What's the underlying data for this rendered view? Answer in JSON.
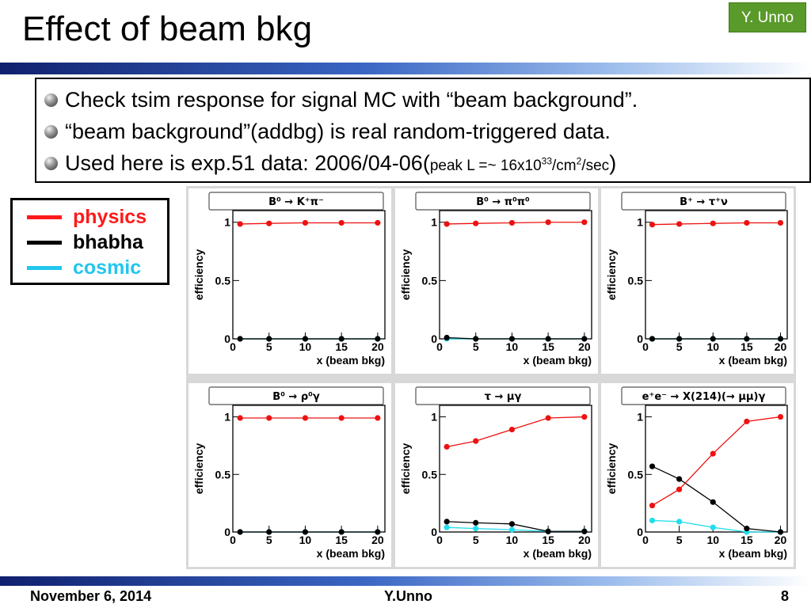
{
  "slide": {
    "title": "Effect of beam bkg",
    "author_badge": "Y. Unno",
    "bullets": [
      "Check tsim response for signal MC with “beam background”.",
      "“beam background”(addbg) is real random-triggered data."
    ],
    "bullet3": {
      "text": "Used here is exp.51 data: 2006/04-06(",
      "small_a": "peak L =~ 16x10",
      "sup_a": "33",
      "small_b": "/cm",
      "sup_b": "2",
      "small_c": "/sec",
      "close": ")"
    },
    "footer": {
      "date": "November 6, 2014",
      "author": "Y.Unno",
      "page": "8"
    }
  },
  "legend": {
    "items": [
      {
        "label": "physics",
        "color": "#ff1a1a"
      },
      {
        "label": "bhabha",
        "color": "#000000"
      },
      {
        "label": "cosmic",
        "color": "#22c6ee"
      }
    ]
  },
  "colors": {
    "physics": "#ee1111",
    "bhabha": "#000000",
    "cosmic": "#22ddee"
  },
  "chart_data": [
    {
      "type": "line",
      "title": "B⁰ → K⁺π⁻",
      "xlabel": "x (beam bkg)",
      "ylabel": "efficiency",
      "xlim": [
        0,
        21
      ],
      "ylim": [
        0,
        1.1
      ],
      "xticks": [
        "0",
        "5",
        "10",
        "15",
        "20"
      ],
      "yticks": [
        "0",
        "0.5",
        "1"
      ],
      "x": [
        1,
        5,
        10,
        15,
        20
      ],
      "series": [
        {
          "name": "physics",
          "values": [
            0.985,
            0.99,
            0.995,
            0.995,
            0.995
          ]
        },
        {
          "name": "bhabha",
          "values": [
            0.0,
            0.0,
            0.0,
            0.0,
            0.0
          ]
        },
        {
          "name": "cosmic",
          "values": [
            0.0,
            0.0,
            0.0,
            0.0,
            0.0
          ]
        }
      ]
    },
    {
      "type": "line",
      "title": "B⁰ → π⁰π⁰",
      "xlabel": "x (beam bkg)",
      "ylabel": "efficiency",
      "xlim": [
        0,
        21
      ],
      "ylim": [
        0,
        1.1
      ],
      "xticks": [
        "0",
        "5",
        "10",
        "15",
        "20"
      ],
      "yticks": [
        "0",
        "0.5",
        "1"
      ],
      "x": [
        1,
        5,
        10,
        15,
        20
      ],
      "series": [
        {
          "name": "physics",
          "values": [
            0.985,
            0.99,
            0.995,
            1.0,
            1.0
          ]
        },
        {
          "name": "bhabha",
          "values": [
            0.01,
            0.0,
            0.0,
            0.0,
            0.0
          ]
        },
        {
          "name": "cosmic",
          "values": [
            0.0,
            0.0,
            0.0,
            0.0,
            0.0
          ]
        }
      ]
    },
    {
      "type": "line",
      "title": "B⁺ → τ⁺ν",
      "xlabel": "x (beam bkg)",
      "ylabel": "efficiency",
      "xlim": [
        0,
        21
      ],
      "ylim": [
        0,
        1.1
      ],
      "xticks": [
        "0",
        "5",
        "10",
        "15",
        "20"
      ],
      "yticks": [
        "0",
        "0.5",
        "1"
      ],
      "x": [
        1,
        5,
        10,
        15,
        20
      ],
      "series": [
        {
          "name": "physics",
          "values": [
            0.98,
            0.985,
            0.99,
            0.995,
            0.995
          ]
        },
        {
          "name": "bhabha",
          "values": [
            0.0,
            0.0,
            0.0,
            0.0,
            0.0
          ]
        },
        {
          "name": "cosmic",
          "values": [
            0.0,
            0.0,
            0.0,
            0.0,
            0.0
          ]
        }
      ]
    },
    {
      "type": "line",
      "title": "B⁰ → ρ⁰γ",
      "xlabel": "x (beam bkg)",
      "ylabel": "efficiency",
      "xlim": [
        0,
        21
      ],
      "ylim": [
        0,
        1.1
      ],
      "xticks": [
        "0",
        "5",
        "10",
        "15",
        "20"
      ],
      "yticks": [
        "0",
        "0.5",
        "1"
      ],
      "x": [
        1,
        5,
        10,
        15,
        20
      ],
      "series": [
        {
          "name": "physics",
          "values": [
            0.99,
            0.99,
            0.99,
            0.99,
            0.99
          ]
        },
        {
          "name": "bhabha",
          "values": [
            0.0,
            0.0,
            0.0,
            0.0,
            0.0
          ]
        },
        {
          "name": "cosmic",
          "values": [
            0.0,
            0.0,
            0.0,
            0.0,
            0.0
          ]
        }
      ]
    },
    {
      "type": "line",
      "title": "τ → μγ",
      "xlabel": "x (beam bkg)",
      "ylabel": "efficiency",
      "xlim": [
        0,
        21
      ],
      "ylim": [
        0,
        1.1
      ],
      "xticks": [
        "0",
        "5",
        "10",
        "15",
        "20"
      ],
      "yticks": [
        "0",
        "0.5",
        "1"
      ],
      "x": [
        1,
        5,
        10,
        15,
        20
      ],
      "series": [
        {
          "name": "physics",
          "values": [
            0.74,
            0.79,
            0.89,
            0.99,
            1.0
          ]
        },
        {
          "name": "bhabha",
          "values": [
            0.09,
            0.08,
            0.07,
            0.005,
            0.005
          ]
        },
        {
          "name": "cosmic",
          "values": [
            0.04,
            0.03,
            0.02,
            0.005,
            0.005
          ]
        }
      ]
    },
    {
      "type": "line",
      "title": "e⁺e⁻ → X(214)(→ μμ)γ",
      "xlabel": "x (beam bkg)",
      "ylabel": "efficiency",
      "xlim": [
        0,
        21
      ],
      "ylim": [
        0,
        1.1
      ],
      "xticks": [
        "0",
        "5",
        "10",
        "15",
        "20"
      ],
      "yticks": [
        "0",
        "0.5",
        "1"
      ],
      "x": [
        1,
        5,
        10,
        15,
        20
      ],
      "series": [
        {
          "name": "physics",
          "values": [
            0.23,
            0.37,
            0.68,
            0.96,
            1.0
          ]
        },
        {
          "name": "bhabha",
          "values": [
            0.57,
            0.46,
            0.26,
            0.03,
            0.0
          ]
        },
        {
          "name": "cosmic",
          "values": [
            0.1,
            0.09,
            0.04,
            0.0,
            0.0
          ]
        }
      ]
    }
  ]
}
